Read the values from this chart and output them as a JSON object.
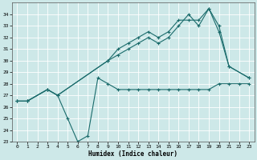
{
  "xlabel": "Humidex (Indice chaleur)",
  "xlim": [
    -0.5,
    23.5
  ],
  "ylim": [
    23,
    35
  ],
  "yticks": [
    23,
    24,
    25,
    26,
    27,
    28,
    29,
    30,
    31,
    32,
    33,
    34
  ],
  "xticks": [
    0,
    1,
    2,
    3,
    4,
    5,
    6,
    7,
    8,
    9,
    10,
    11,
    12,
    13,
    14,
    15,
    16,
    17,
    18,
    19,
    20,
    21,
    22,
    23
  ],
  "bg_color": "#cde8e8",
  "line_color": "#1a6b6b",
  "grid_color": "#b8d8d8",
  "line1_x": [
    0,
    1,
    3,
    4,
    5,
    6,
    7,
    8,
    9,
    10,
    11,
    12,
    13,
    14,
    15,
    16,
    17,
    18,
    19,
    20,
    21,
    22,
    23
  ],
  "line1_y": [
    26.5,
    26.5,
    27.5,
    27.0,
    25.0,
    23.0,
    23.5,
    28.5,
    28.0,
    27.5,
    27.5,
    27.5,
    27.5,
    27.5,
    27.5,
    27.5,
    27.5,
    27.5,
    27.5,
    28.0,
    28.0,
    28.0,
    28.0
  ],
  "line2_x": [
    0,
    1,
    3,
    4,
    9,
    10,
    11,
    12,
    13,
    14,
    15,
    16,
    17,
    18,
    19,
    20,
    21,
    23
  ],
  "line2_y": [
    26.5,
    26.5,
    27.5,
    27.0,
    30.0,
    31.0,
    31.5,
    32.0,
    32.5,
    32.0,
    32.5,
    33.5,
    33.5,
    33.5,
    34.5,
    33.0,
    29.5,
    28.5
  ],
  "line3_x": [
    0,
    1,
    3,
    4,
    9,
    10,
    11,
    12,
    13,
    14,
    15,
    16,
    17,
    18,
    19,
    20,
    21,
    23
  ],
  "line3_y": [
    26.5,
    26.5,
    27.5,
    27.0,
    30.0,
    30.5,
    31.0,
    31.5,
    32.0,
    31.5,
    32.0,
    33.0,
    34.0,
    33.0,
    34.5,
    32.5,
    29.5,
    28.5
  ]
}
